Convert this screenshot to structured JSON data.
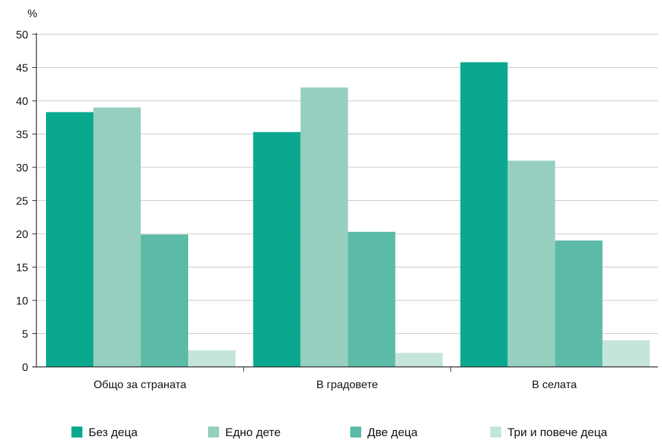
{
  "chart_data": {
    "type": "bar",
    "unit_label": "%",
    "title": "",
    "xlabel": "",
    "ylabel": "",
    "ylim": [
      0,
      50
    ],
    "yticks": [
      0,
      5,
      10,
      15,
      20,
      25,
      30,
      35,
      40,
      45,
      50
    ],
    "grid": true,
    "legend_position": "bottom",
    "categories": [
      "Общо за страната",
      "В градовете",
      "В селата"
    ],
    "series": [
      {
        "name": "Без деца",
        "color": "#0aa98f",
        "values": [
          38.3,
          35.3,
          45.8
        ]
      },
      {
        "name": "Едно дете",
        "color": "#96cfc0",
        "values": [
          39.0,
          42.0,
          31.0
        ]
      },
      {
        "name": "Две деца",
        "color": "#5bbba6",
        "values": [
          19.9,
          20.3,
          19.0
        ]
      },
      {
        "name": "Три и повече деца",
        "color": "#c5e5dc",
        "values": [
          2.5,
          2.1,
          4.0
        ]
      }
    ]
  }
}
